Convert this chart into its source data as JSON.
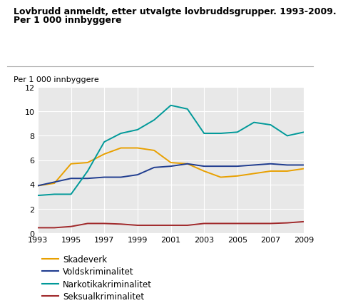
{
  "title_line1": "Lovbrudd anmeldt, etter utvalgte lovbruddsgrupper. 1993-2009.",
  "title_line2": "Per 1 000 innbyggere",
  "ylabel": "Per 1 000 innbyggere",
  "years": [
    1993,
    1994,
    1995,
    1996,
    1997,
    1998,
    1999,
    2000,
    2001,
    2002,
    2003,
    2004,
    2005,
    2006,
    2007,
    2008,
    2009
  ],
  "series": [
    {
      "name": "Skadeverk",
      "color": "#E8A000",
      "values": [
        3.9,
        4.1,
        5.7,
        5.8,
        6.5,
        7.0,
        7.0,
        6.8,
        5.8,
        5.7,
        5.1,
        4.6,
        4.7,
        4.9,
        5.1,
        5.1,
        5.3
      ]
    },
    {
      "name": "Voldskriminalitet",
      "color": "#1F3C8F",
      "values": [
        3.9,
        4.2,
        4.5,
        4.5,
        4.6,
        4.6,
        4.8,
        5.4,
        5.5,
        5.7,
        5.5,
        5.5,
        5.5,
        5.6,
        5.7,
        5.6,
        5.6
      ]
    },
    {
      "name": "Narkotikakriminalitet",
      "color": "#009999",
      "values": [
        3.1,
        3.2,
        3.2,
        5.1,
        7.5,
        8.2,
        8.5,
        9.3,
        10.5,
        10.2,
        8.2,
        8.2,
        8.3,
        9.1,
        8.9,
        8.0,
        8.3
      ]
    },
    {
      "name": "Seksualkriminalitet",
      "color": "#A0282A",
      "values": [
        0.45,
        0.45,
        0.55,
        0.8,
        0.8,
        0.75,
        0.65,
        0.65,
        0.65,
        0.65,
        0.8,
        0.8,
        0.8,
        0.8,
        0.8,
        0.85,
        0.95
      ]
    }
  ],
  "xlim": [
    1993,
    2009
  ],
  "ylim": [
    0,
    12
  ],
  "yticks": [
    0,
    2,
    4,
    6,
    8,
    10,
    12
  ],
  "xticks": [
    1993,
    1995,
    1997,
    1999,
    2001,
    2003,
    2005,
    2007,
    2009
  ],
  "plot_bg": "#e8e8e8",
  "fig_bg": "#ffffff",
  "title_fontsize": 9.0,
  "ylabel_fontsize": 8.0,
  "tick_fontsize": 8.0,
  "legend_fontsize": 8.5
}
